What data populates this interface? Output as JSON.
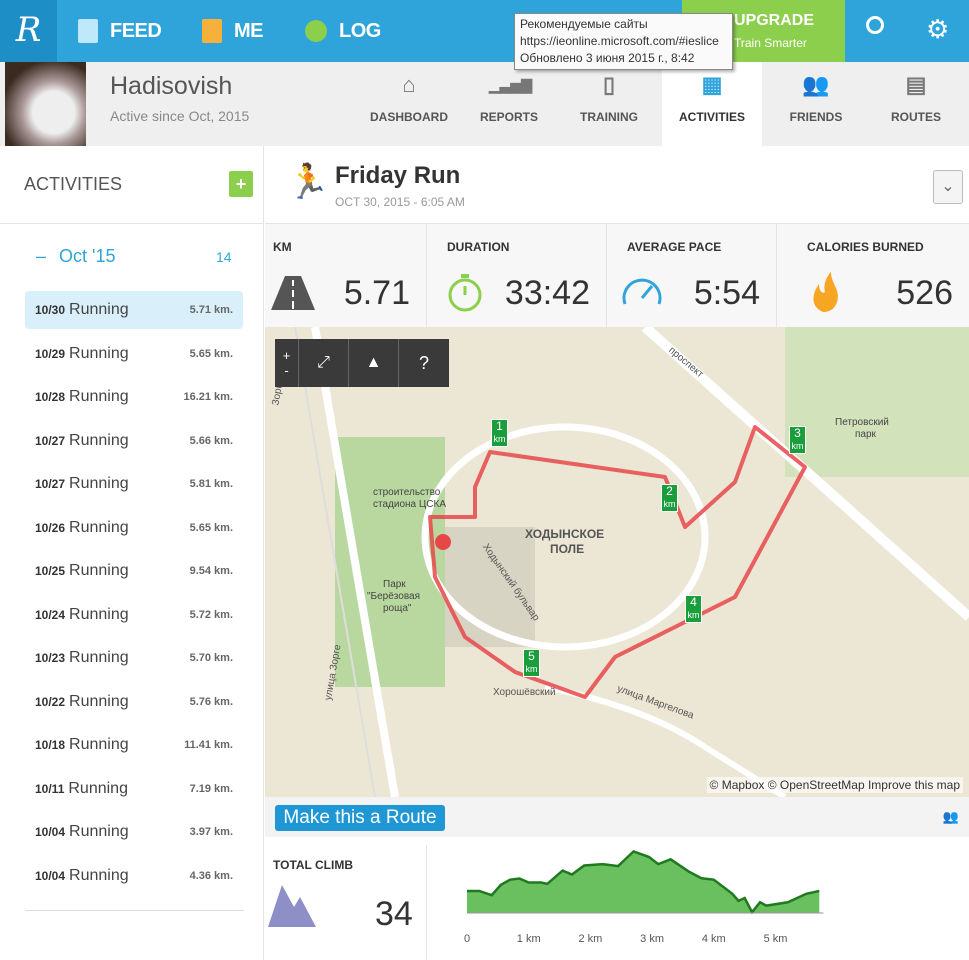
{
  "topnav": {
    "logo": "R",
    "feed": "FEED",
    "me": "ME",
    "log": "LOG",
    "upgrade": "UPGRADE",
    "upgrade_sub": "Train Smarter"
  },
  "tooltip": {
    "line1": "Рекомендуемые сайты",
    "line2": "https://ieonline.microsoft.com/#ieslice",
    "line3": "Обновлено 3 июня 2015 г., 8:42"
  },
  "profile": {
    "name": "Hadisovish",
    "since": "Active since Oct, 2015"
  },
  "tabs": [
    {
      "label": "DASHBOARD",
      "icon": "home-icon"
    },
    {
      "label": "REPORTS",
      "icon": "bars-icon"
    },
    {
      "label": "TRAINING",
      "icon": "clipboard-icon"
    },
    {
      "label": "ACTIVITIES",
      "icon": "calendar-icon"
    },
    {
      "label": "FRIENDS",
      "icon": "people-icon"
    },
    {
      "label": "ROUTES",
      "icon": "map-icon"
    }
  ],
  "sidebar": {
    "title": "ACTIVITIES",
    "add": "+",
    "month": "Oct '15",
    "collapse": "–",
    "count": "14",
    "items": [
      {
        "date": "10/30",
        "type": "Running",
        "km": "5.71 km."
      },
      {
        "date": "10/29",
        "type": "Running",
        "km": "5.65 km."
      },
      {
        "date": "10/28",
        "type": "Running",
        "km": "16.21 km."
      },
      {
        "date": "10/27",
        "type": "Running",
        "km": "5.66 km."
      },
      {
        "date": "10/27",
        "type": "Running",
        "km": "5.81 km."
      },
      {
        "date": "10/26",
        "type": "Running",
        "km": "5.65 km."
      },
      {
        "date": "10/25",
        "type": "Running",
        "km": "9.54 km."
      },
      {
        "date": "10/24",
        "type": "Running",
        "km": "5.72 km."
      },
      {
        "date": "10/23",
        "type": "Running",
        "km": "5.70 km."
      },
      {
        "date": "10/22",
        "type": "Running",
        "km": "5.76 km."
      },
      {
        "date": "10/18",
        "type": "Running",
        "km": "11.41 km."
      },
      {
        "date": "10/11",
        "type": "Running",
        "km": "7.19 km."
      },
      {
        "date": "10/04",
        "type": "Running",
        "km": "3.97 km."
      },
      {
        "date": "10/04",
        "type": "Running",
        "km": "4.36 km."
      }
    ]
  },
  "activity": {
    "title": "Friday Run",
    "date": "OCT 30, 2015  -  6:05 AM",
    "dropdown": "⌄"
  },
  "stats": [
    {
      "label": "KM",
      "value": "5.71"
    },
    {
      "label": "DURATION",
      "value": "33:42"
    },
    {
      "label": "AVERAGE PACE",
      "value": "5:54"
    },
    {
      "label": "CALORIES BURNED",
      "value": "526"
    }
  ],
  "map": {
    "controls": {
      "zoom_in": "+",
      "zoom_out": "-",
      "help": "?"
    },
    "labels": {
      "field": "ХОДЫНСКОЕ",
      "field2": "ПОЛЕ",
      "stadium": "строительство",
      "stadium2": "стадиона ЦСКА",
      "park": "Парк",
      "park2": "\"Берёзовая",
      "park3": "роща\"",
      "park4": "Петровский",
      "park5": "парк",
      "blvd": "Ходынский бульвар",
      "prospekt": "проспект",
      "zorge": "улица Зорге",
      "marg": "улица Маргелова",
      "khor": "Хорошёвский",
      "zorge2": "Зорге"
    },
    "markers": [
      "1",
      "2",
      "3",
      "4",
      "5"
    ],
    "marker_unit": "km",
    "attribution": "© Mapbox © OpenStreetMap Improve this map"
  },
  "route_button": "Make this a Route",
  "climb": {
    "label": "TOTAL CLIMB",
    "value": "34"
  },
  "chart_data": {
    "type": "area",
    "title": "",
    "xlabel": "",
    "ylabel": "",
    "xlim": [
      0,
      5.71
    ],
    "ylim": [
      0,
      230
    ],
    "x": [
      0,
      0.2,
      0.4,
      0.55,
      0.7,
      0.85,
      1.0,
      1.2,
      1.3,
      1.55,
      1.7,
      1.9,
      2.2,
      2.45,
      2.7,
      2.95,
      3.1,
      3.3,
      3.6,
      3.8,
      4.0,
      4.3,
      4.4,
      4.5,
      4.62,
      4.75,
      4.85,
      5.2,
      5.5,
      5.71
    ],
    "y": [
      78,
      78,
      63,
      100,
      118,
      122,
      108,
      108,
      103,
      150,
      136,
      168,
      173,
      166,
      218,
      198,
      173,
      190,
      146,
      123,
      118,
      68,
      43,
      53,
      3,
      38,
      26,
      38,
      68,
      78
    ],
    "ticks": [
      "0",
      "1 km",
      "2 km",
      "3 km",
      "4 km",
      "5 km"
    ]
  },
  "colors": {
    "blue": "#2fa4db",
    "green": "#8ccf4c",
    "route": "#e8474a",
    "elev": "#6abf5e"
  }
}
